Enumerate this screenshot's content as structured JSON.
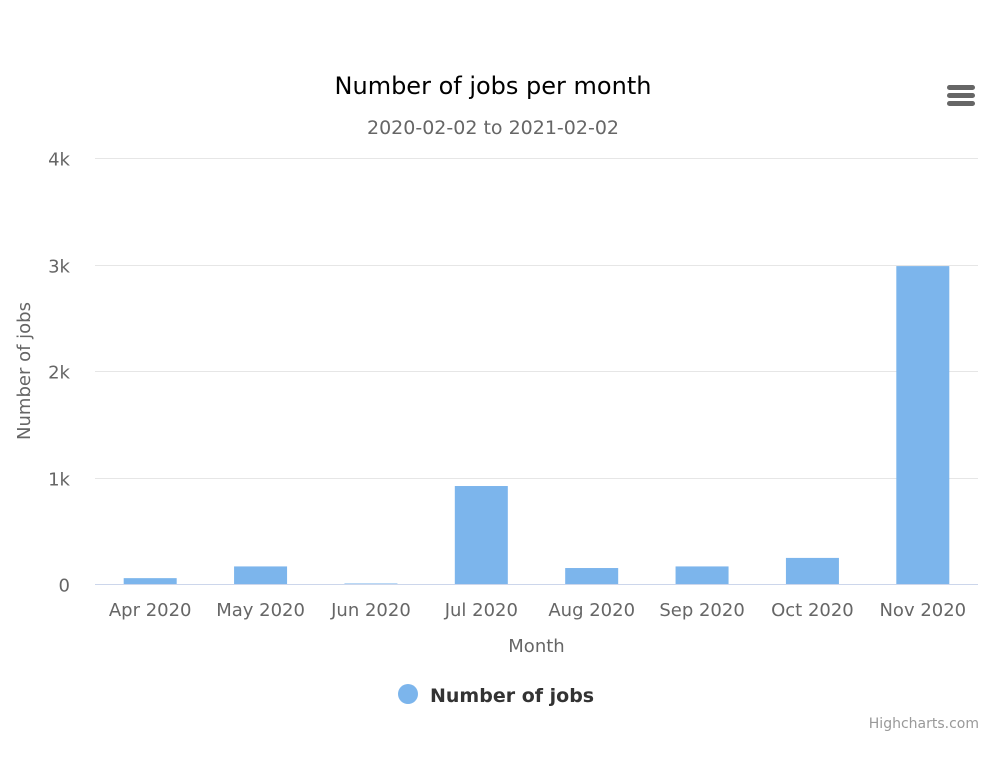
{
  "chart_data": {
    "type": "bar",
    "title": "Number of jobs per month",
    "subtitle": "2020-02-02 to 2021-02-02",
    "xlabel": "Month",
    "ylabel": "Number of jobs",
    "categories": [
      "Apr 2020",
      "May 2020",
      "Jun 2020",
      "Jul 2020",
      "Aug 2020",
      "Sep 2020",
      "Oct 2020",
      "Nov 2020"
    ],
    "series": [
      {
        "name": "Number of jobs",
        "values": [
          55,
          165,
          5,
          920,
          150,
          165,
          245,
          2985
        ],
        "color": "#7cb5ec"
      }
    ],
    "ylim": [
      0,
      4000
    ],
    "yticks": [
      0,
      1000,
      2000,
      3000,
      4000
    ],
    "ytick_labels": [
      "0",
      "1k",
      "2k",
      "3k",
      "4k"
    ],
    "grid": true,
    "legend_position": "bottom-center"
  },
  "credits": "Highcharts.com",
  "menu_icon": "hamburger-menu-icon"
}
